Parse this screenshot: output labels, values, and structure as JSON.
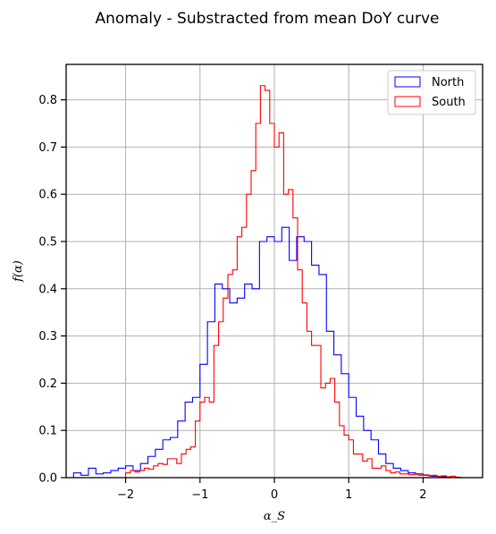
{
  "chart_data": {
    "type": "histogram",
    "title": "Anomaly - Substracted from mean DoY curve",
    "xlabel": "α_S",
    "ylabel": "f(α)",
    "xlim": [
      -2.8,
      2.8
    ],
    "ylim": [
      0,
      0.875
    ],
    "x_ticks": [
      -2,
      -1,
      0,
      1,
      2
    ],
    "x_tick_labels": [
      "−2",
      "−1",
      "0",
      "1",
      "2"
    ],
    "y_ticks": [
      0.0,
      0.1,
      0.2,
      0.3,
      0.4,
      0.5,
      0.6,
      0.7,
      0.8
    ],
    "y_tick_labels": [
      "0.0",
      "0.1",
      "0.2",
      "0.3",
      "0.4",
      "0.5",
      "0.6",
      "0.7",
      "0.8"
    ],
    "grid": true,
    "legend_position": "top-right",
    "series": [
      {
        "name": "North",
        "color": "#0000ff",
        "bin_width": 0.1,
        "bin_lefts": [
          -2.7,
          -2.6,
          -2.5,
          -2.4,
          -2.3,
          -2.2,
          -2.1,
          -2.0,
          -1.9,
          -1.8,
          -1.7,
          -1.6,
          -1.5,
          -1.4,
          -1.3,
          -1.2,
          -1.1,
          -1.0,
          -0.9,
          -0.8,
          -0.7,
          -0.6,
          -0.5,
          -0.4,
          -0.3,
          -0.2,
          -0.1,
          0.0,
          0.1,
          0.2,
          0.3,
          0.4,
          0.5,
          0.6,
          0.7,
          0.8,
          0.9,
          1.0,
          1.1,
          1.2,
          1.3,
          1.4,
          1.5,
          1.6,
          1.7,
          1.8,
          1.9,
          2.0,
          2.1,
          2.2
        ],
        "values": [
          0.01,
          0.005,
          0.02,
          0.008,
          0.01,
          0.015,
          0.02,
          0.025,
          0.015,
          0.03,
          0.045,
          0.06,
          0.08,
          0.085,
          0.12,
          0.16,
          0.17,
          0.24,
          0.33,
          0.41,
          0.4,
          0.37,
          0.38,
          0.41,
          0.4,
          0.5,
          0.51,
          0.5,
          0.53,
          0.46,
          0.51,
          0.5,
          0.45,
          0.43,
          0.31,
          0.26,
          0.22,
          0.17,
          0.13,
          0.1,
          0.08,
          0.05,
          0.03,
          0.02,
          0.015,
          0.01,
          0.008,
          0.005,
          0.003,
          0.002
        ]
      },
      {
        "name": "South",
        "color": "#ff0000",
        "bin_width": 0.0625,
        "bin_lefts": [
          -2.0,
          -1.9375,
          -1.875,
          -1.8125,
          -1.75,
          -1.6875,
          -1.625,
          -1.5625,
          -1.5,
          -1.4375,
          -1.375,
          -1.3125,
          -1.25,
          -1.1875,
          -1.125,
          -1.0625,
          -1.0,
          -0.9375,
          -0.875,
          -0.8125,
          -0.75,
          -0.6875,
          -0.625,
          -0.5625,
          -0.5,
          -0.4375,
          -0.375,
          -0.3125,
          -0.25,
          -0.1875,
          -0.125,
          -0.0625,
          0.0,
          0.0625,
          0.125,
          0.1875,
          0.25,
          0.3125,
          0.375,
          0.4375,
          0.5,
          0.5625,
          0.625,
          0.6875,
          0.75,
          0.8125,
          0.875,
          0.9375,
          1.0,
          1.0625,
          1.125,
          1.1875,
          1.25,
          1.3125,
          1.375,
          1.4375,
          1.5,
          1.5625,
          1.625,
          1.6875,
          1.75,
          1.8125,
          1.875,
          1.9375,
          2.0,
          2.0625,
          2.125,
          2.1875,
          2.25,
          2.3125,
          2.375,
          2.4375
        ],
        "values": [
          0.01,
          0.015,
          0.012,
          0.015,
          0.02,
          0.018,
          0.025,
          0.03,
          0.028,
          0.04,
          0.04,
          0.03,
          0.05,
          0.06,
          0.065,
          0.12,
          0.16,
          0.17,
          0.16,
          0.28,
          0.33,
          0.38,
          0.43,
          0.44,
          0.51,
          0.53,
          0.6,
          0.65,
          0.75,
          0.83,
          0.82,
          0.75,
          0.7,
          0.73,
          0.6,
          0.61,
          0.55,
          0.44,
          0.37,
          0.31,
          0.28,
          0.28,
          0.19,
          0.2,
          0.21,
          0.16,
          0.11,
          0.09,
          0.08,
          0.05,
          0.05,
          0.035,
          0.04,
          0.02,
          0.02,
          0.025,
          0.015,
          0.01,
          0.012,
          0.008,
          0.008,
          0.006,
          0.007,
          0.005,
          0.006,
          0.004,
          0.005,
          0.003,
          0.004,
          0.002,
          0.003,
          0.001
        ]
      }
    ]
  }
}
